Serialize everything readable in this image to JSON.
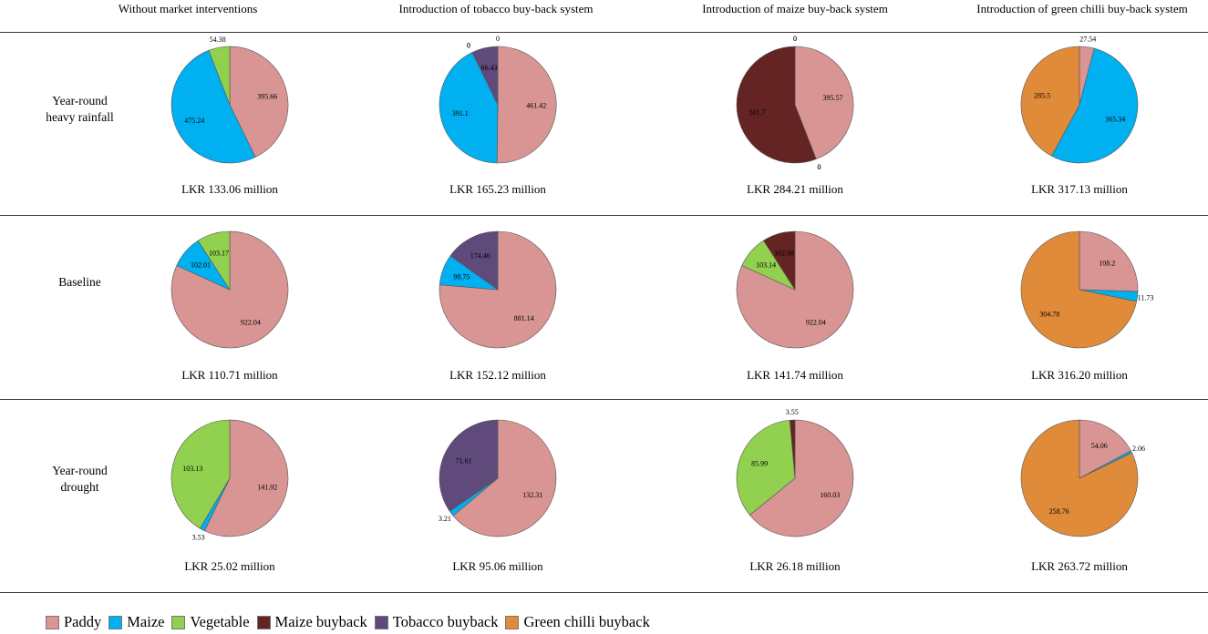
{
  "columns": [
    "Without market interventions",
    "Introduction of tobacco buy-back system",
    "Introduction of maize buy-back system",
    "Introduction of green chilli buy-back system"
  ],
  "rows": [
    {
      "label_line1": "Year-round",
      "label_line2": "heavy rainfall"
    },
    {
      "label_line1": "Baseline",
      "label_line2": ""
    },
    {
      "label_line1": "Year-round",
      "label_line2": "drought"
    }
  ],
  "legend": [
    {
      "name": "Paddy",
      "color": "#d99594"
    },
    {
      "name": "Maize",
      "color": "#00b0f0"
    },
    {
      "name": "Vegetable",
      "color": "#92d050"
    },
    {
      "name": "Maize buyback",
      "color": "#632423"
    },
    {
      "name": "Tobacco buyback",
      "color": "#604a7b"
    },
    {
      "name": "Green chilli buyback",
      "color": "#e08b3a"
    }
  ],
  "chart_data": {
    "type": "pie",
    "pies": [
      {
        "row": 0,
        "col": 0,
        "total": "LKR 133.06 million",
        "slices": [
          {
            "series": "Paddy",
            "value": 395.66,
            "label": "395.66"
          },
          {
            "series": "Maize",
            "value": 475.24,
            "label": "475.24"
          },
          {
            "series": "Vegetable",
            "value": 54.38,
            "label": "54.38"
          }
        ]
      },
      {
        "row": 0,
        "col": 1,
        "total": "LKR 165.23 million",
        "slices": [
          {
            "series": "Paddy",
            "value": 461.42,
            "label": "461.42"
          },
          {
            "series": "Maize",
            "value": 391.1,
            "label": "391.1"
          },
          {
            "series": "Vegetable",
            "value": 0,
            "label": "0"
          },
          {
            "series": "Maize buyback",
            "value": 0,
            "label": "0"
          },
          {
            "series": "Tobacco buyback",
            "value": 66.43,
            "label": "66.43"
          },
          {
            "series": "Green chilli buyback",
            "value": 0,
            "label": "0"
          }
        ]
      },
      {
        "row": 0,
        "col": 2,
        "total": "LKR 284.21 million",
        "slices": [
          {
            "series": "Paddy",
            "value": 395.57,
            "label": "395.57"
          },
          {
            "series": "Maize",
            "value": 0,
            "label": "0"
          },
          {
            "series": "Vegetable",
            "value": 0,
            "label": "0"
          },
          {
            "series": "Maize buyback",
            "value": 501.7,
            "label": "501.7"
          },
          {
            "series": "Tobacco buyback",
            "value": 0,
            "label": "0"
          },
          {
            "series": "Green chilli buyback",
            "value": 0,
            "label": "0"
          }
        ]
      },
      {
        "row": 0,
        "col": 3,
        "total": "LKR 317.13 million",
        "slices": [
          {
            "series": "Paddy",
            "value": 27.54,
            "label": "27.54"
          },
          {
            "series": "Maize",
            "value": 365.34,
            "label": "365.34"
          },
          {
            "series": "Green chilli buyback",
            "value": 285.5,
            "label": "285.5"
          }
        ]
      },
      {
        "row": 1,
        "col": 0,
        "total": "LKR 110.71 million",
        "slices": [
          {
            "series": "Paddy",
            "value": 922.04,
            "label": "922.04"
          },
          {
            "series": "Maize",
            "value": 102.01,
            "label": "102.01"
          },
          {
            "series": "Vegetable",
            "value": 103.17,
            "label": "103.17"
          }
        ]
      },
      {
        "row": 1,
        "col": 1,
        "total": "LKR 152.12 million",
        "slices": [
          {
            "series": "Paddy",
            "value": 881.14,
            "label": "881.14"
          },
          {
            "series": "Maize",
            "value": 98.75,
            "label": "98.75"
          },
          {
            "series": "Tobacco buyback",
            "value": 174.46,
            "label": "174.46"
          }
        ]
      },
      {
        "row": 1,
        "col": 2,
        "total": "LKR 141.74 million",
        "slices": [
          {
            "series": "Paddy",
            "value": 922.04,
            "label": "922.04"
          },
          {
            "series": "Vegetable",
            "value": 103.14,
            "label": "103.14"
          },
          {
            "series": "Maize buyback",
            "value": 102.08,
            "label": "102.08"
          }
        ]
      },
      {
        "row": 1,
        "col": 3,
        "total": "LKR 316.20 million",
        "slices": [
          {
            "series": "Paddy",
            "value": 108.2,
            "label": "108.2"
          },
          {
            "series": "Maize",
            "value": 11.73,
            "label": "11.73"
          },
          {
            "series": "Green chilli buyback",
            "value": 304.78,
            "label": "304.78"
          }
        ]
      },
      {
        "row": 2,
        "col": 0,
        "total": "LKR 25.02 million",
        "slices": [
          {
            "series": "Paddy",
            "value": 141.92,
            "label": "141.92"
          },
          {
            "series": "Maize",
            "value": 3.53,
            "label": "3.53"
          },
          {
            "series": "Vegetable",
            "value": 103.13,
            "label": "103.13"
          }
        ]
      },
      {
        "row": 2,
        "col": 1,
        "total": "LKR 95.06 million",
        "slices": [
          {
            "series": "Paddy",
            "value": 132.31,
            "label": "132.31"
          },
          {
            "series": "Maize",
            "value": 3.21,
            "label": "3.21"
          },
          {
            "series": "Tobacco buyback",
            "value": 71.61,
            "label": "71.61"
          }
        ]
      },
      {
        "row": 2,
        "col": 2,
        "total": "LKR 26.18 million",
        "slices": [
          {
            "series": "Paddy",
            "value": 160.03,
            "label": "160.03"
          },
          {
            "series": "Vegetable",
            "value": 85.99,
            "label": "85.99"
          },
          {
            "series": "Maize buyback",
            "value": 3.55,
            "label": "3.55"
          }
        ]
      },
      {
        "row": 2,
        "col": 3,
        "total": "LKR 263.72 million",
        "slices": [
          {
            "series": "Paddy",
            "value": 54.06,
            "label": "54.06"
          },
          {
            "series": "Maize",
            "value": 2.06,
            "label": "2.06"
          },
          {
            "series": "Green chilli buyback",
            "value": 258.76,
            "label": "258.76"
          }
        ]
      }
    ]
  }
}
